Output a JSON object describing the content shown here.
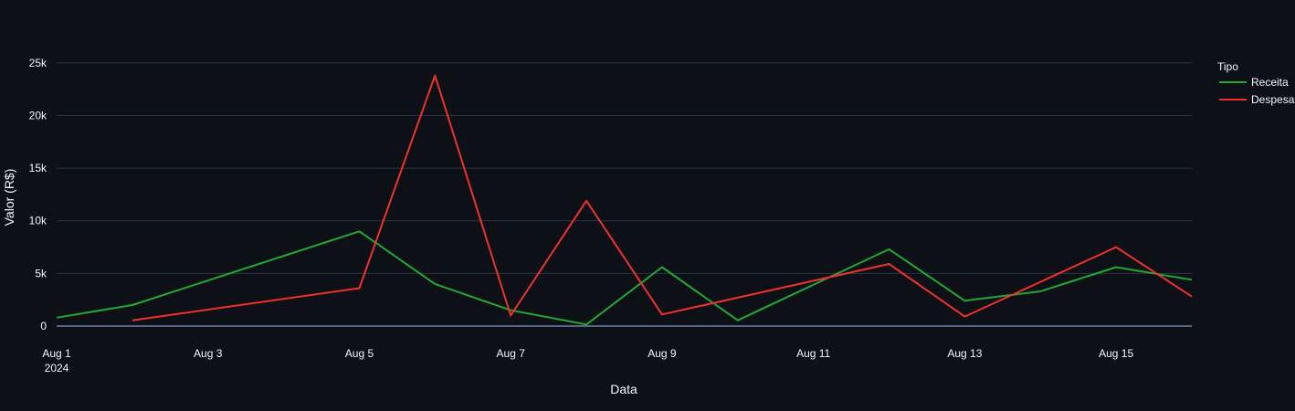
{
  "chart_data": {
    "type": "line",
    "xlabel": "Data",
    "ylabel": "Valor (R$)",
    "xlim": [
      "2024-08-01",
      "2024-08-16"
    ],
    "ylim": [
      -1300,
      27500
    ],
    "x_ticks": [
      {
        "date": "2024-08-01",
        "label": "Aug 1",
        "sublabel": "2024"
      },
      {
        "date": "2024-08-03",
        "label": "Aug 3",
        "sublabel": ""
      },
      {
        "date": "2024-08-05",
        "label": "Aug 5",
        "sublabel": ""
      },
      {
        "date": "2024-08-07",
        "label": "Aug 7",
        "sublabel": ""
      },
      {
        "date": "2024-08-09",
        "label": "Aug 9",
        "sublabel": ""
      },
      {
        "date": "2024-08-11",
        "label": "Aug 11",
        "sublabel": ""
      },
      {
        "date": "2024-08-13",
        "label": "Aug 13",
        "sublabel": ""
      },
      {
        "date": "2024-08-15",
        "label": "Aug 15",
        "sublabel": ""
      }
    ],
    "y_ticks": [
      {
        "value": 0,
        "label": "0"
      },
      {
        "value": 5000,
        "label": "5k"
      },
      {
        "value": 10000,
        "label": "10k"
      },
      {
        "value": 15000,
        "label": "15k"
      },
      {
        "value": 20000,
        "label": "20k"
      },
      {
        "value": 25000,
        "label": "25k"
      }
    ],
    "grid": true,
    "legend": {
      "title": "Tipo",
      "position": "right"
    },
    "series": [
      {
        "name": "Receita",
        "color": "#1fa834",
        "points": [
          {
            "x": "2024-08-01",
            "y": 800
          },
          {
            "x": "2024-08-02",
            "y": 2000
          },
          {
            "x": "2024-08-05",
            "y": 9000
          },
          {
            "x": "2024-08-06",
            "y": 4000
          },
          {
            "x": "2024-08-07",
            "y": 1500
          },
          {
            "x": "2024-08-08",
            "y": 150
          },
          {
            "x": "2024-08-09",
            "y": 5600
          },
          {
            "x": "2024-08-10",
            "y": 550
          },
          {
            "x": "2024-08-12",
            "y": 7300
          },
          {
            "x": "2024-08-13",
            "y": 2400
          },
          {
            "x": "2024-08-14",
            "y": 3300
          },
          {
            "x": "2024-08-15",
            "y": 5600
          },
          {
            "x": "2024-08-16",
            "y": 4400
          }
        ]
      },
      {
        "name": "Despesa",
        "color": "#f0302a",
        "points": [
          {
            "x": "2024-08-02",
            "y": 550
          },
          {
            "x": "2024-08-05",
            "y": 3600
          },
          {
            "x": "2024-08-06",
            "y": 23800
          },
          {
            "x": "2024-08-07",
            "y": 1000
          },
          {
            "x": "2024-08-08",
            "y": 11900
          },
          {
            "x": "2024-08-09",
            "y": 1100
          },
          {
            "x": "2024-08-12",
            "y": 5900
          },
          {
            "x": "2024-08-13",
            "y": 900
          },
          {
            "x": "2024-08-15",
            "y": 7500
          },
          {
            "x": "2024-08-16",
            "y": 2800
          }
        ]
      }
    ]
  }
}
